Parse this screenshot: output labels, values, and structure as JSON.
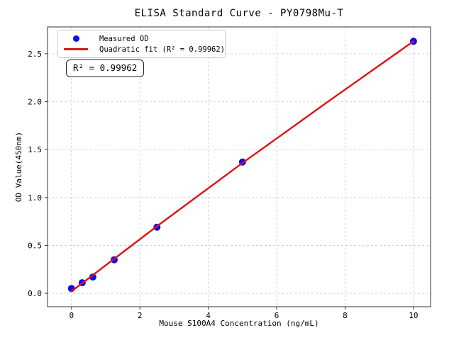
{
  "title": "ELISA Standard Curve - PY0798Mu-T",
  "axes": {
    "xlabel": "Mouse S100A4 Concentration (ng/mL)",
    "ylabel": "OD Value(450nm)"
  },
  "legend": {
    "position": "upper-left",
    "items": [
      {
        "label": "Measured OD",
        "marker": "dot",
        "color": "#0d0dee"
      },
      {
        "label": "Quadratic fit (R² = 0.99962)",
        "marker": "line",
        "color": "#dc1414"
      }
    ]
  },
  "annotation": {
    "text": "R² = 0.99962"
  },
  "chart_data": {
    "type": "scatter",
    "title": "ELISA Standard Curve - PY0798Mu-T",
    "xlabel": "Mouse S100A4 Concentration (ng/mL)",
    "ylabel": "OD Value(450nm)",
    "xlim": [
      -0.7,
      10.5
    ],
    "ylim": [
      -0.14,
      2.78
    ],
    "xticks": [
      0,
      2,
      4,
      6,
      8,
      10
    ],
    "xtick_labels": [
      "0",
      "2",
      "4",
      "6",
      "8",
      "10"
    ],
    "yticks": [
      0,
      0.5,
      1.0,
      1.5,
      2.0,
      2.5
    ],
    "ytick_labels": [
      "0.0",
      "0.5",
      "1.0",
      "1.5",
      "2.0",
      "2.5"
    ],
    "grid": true,
    "grid_color": "#cccccc",
    "spine_color": "#333333",
    "legend_position": "upper-left",
    "r_squared": "0.99962",
    "series": [
      {
        "name": "Measured OD",
        "type": "scatter",
        "color": "#0d0dee",
        "marker_radius": 5,
        "x": [
          0,
          0.313,
          0.625,
          1.25,
          2.5,
          5,
          10
        ],
        "y": [
          0.05,
          0.11,
          0.17,
          0.35,
          0.69,
          1.37,
          2.63
        ]
      },
      {
        "name": "Quadratic fit (R² = 0.99962)",
        "type": "line",
        "color": "#dc1414",
        "line_width": 2.4,
        "x": [
          0,
          1.25,
          2.5,
          5,
          7.5,
          10
        ],
        "y": [
          0.02,
          0.36,
          0.7,
          1.36,
          2.0,
          2.63
        ]
      }
    ]
  }
}
